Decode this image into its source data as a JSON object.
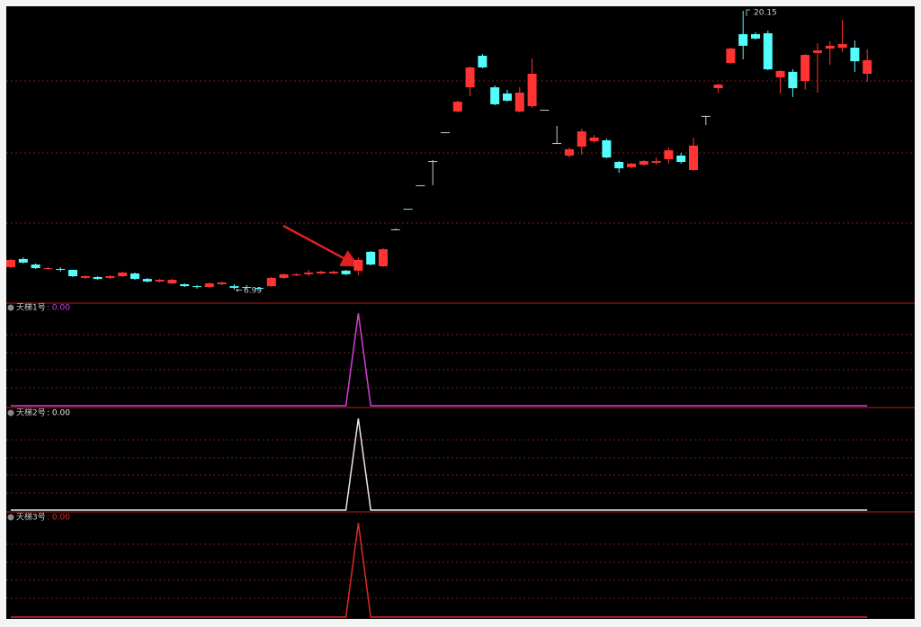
{
  "chart_data": [
    {
      "type": "candlestick",
      "open": [
        8.06,
        8.44,
        8.18,
        7.97,
        7.97,
        7.93,
        7.55,
        7.59,
        7.55,
        7.63,
        7.76,
        7.5,
        7.38,
        7.29,
        7.25,
        7.16,
        7.12,
        7.25,
        7.16,
        7.12,
        7.08,
        7.16,
        7.55,
        7.67,
        7.72,
        7.76,
        7.76,
        7.89,
        7.89,
        8.78,
        8.1,
        9.84,
        10.81,
        11.92,
        13.06,
        14.42,
        15.4,
        16.54,
        18.03,
        16.54,
        16.25,
        15.4,
        15.65,
        15.48,
        13.91,
        13.32,
        13.74,
        14.0,
        14.04,
        13.02,
        12.77,
        12.89,
        12.98,
        13.15,
        13.32,
        12.64,
        15.19,
        16.5,
        17.69,
        19.05,
        19.05,
        19.09,
        17.01,
        17.27,
        16.84,
        18.16,
        18.37,
        18.41,
        18.41,
        17.18
      ],
      "high": [
        8.44,
        8.52,
        8.23,
        8.06,
        8.06,
        7.93,
        7.67,
        7.63,
        7.67,
        7.84,
        7.8,
        7.55,
        7.5,
        7.5,
        7.29,
        7.21,
        7.33,
        7.38,
        7.25,
        7.21,
        7.12,
        7.59,
        7.76,
        7.76,
        7.93,
        7.89,
        7.89,
        7.93,
        8.52,
        8.82,
        8.95,
        9.88,
        10.81,
        11.92,
        13.11,
        14.42,
        15.91,
        17.52,
        18.11,
        16.63,
        16.42,
        16.54,
        17.9,
        15.48,
        14.72,
        13.7,
        14.59,
        14.29,
        14.12,
        13.06,
        12.98,
        13.11,
        13.23,
        13.7,
        13.45,
        14.17,
        15.19,
        16.71,
        18.41,
        20.15,
        19.13,
        19.22,
        17.35,
        17.39,
        18.11,
        18.62,
        18.71,
        19.73,
        18.75,
        18.33
      ],
      "low": [
        8.01,
        8.23,
        7.97,
        7.93,
        7.84,
        7.59,
        7.5,
        7.46,
        7.5,
        7.59,
        7.46,
        7.33,
        7.33,
        7.25,
        7.12,
        7.04,
        7.08,
        7.21,
        6.99,
        7.04,
        7.01,
        7.12,
        7.5,
        7.63,
        7.63,
        7.72,
        7.72,
        7.67,
        7.67,
        8.14,
        8.06,
        9.8,
        10.81,
        11.92,
        11.92,
        14.42,
        15.36,
        16.12,
        17.44,
        15.69,
        15.86,
        15.36,
        15.57,
        15.48,
        13.87,
        13.23,
        13.36,
        13.91,
        13.19,
        12.51,
        12.72,
        12.85,
        12.89,
        12.94,
        12.94,
        12.6,
        14.76,
        16.29,
        17.65,
        17.86,
        18.79,
        17.35,
        16.25,
        16.08,
        16.42,
        16.29,
        17.6,
        18.2,
        17.27,
        16.8
      ],
      "close": [
        8.4,
        8.27,
        8.01,
        8.01,
        7.93,
        7.63,
        7.63,
        7.5,
        7.63,
        7.8,
        7.5,
        7.38,
        7.46,
        7.46,
        7.16,
        7.12,
        7.29,
        7.33,
        7.08,
        7.08,
        7.04,
        7.55,
        7.72,
        7.72,
        7.8,
        7.84,
        7.84,
        7.72,
        8.4,
        8.18,
        8.9,
        9.84,
        10.81,
        11.92,
        13.06,
        14.42,
        15.86,
        17.48,
        17.48,
        15.74,
        15.91,
        16.29,
        17.18,
        15.48,
        13.91,
        13.62,
        14.46,
        14.17,
        13.23,
        12.72,
        12.94,
        13.06,
        13.06,
        13.57,
        13.02,
        13.79,
        15.19,
        16.67,
        18.37,
        18.5,
        18.84,
        17.39,
        17.31,
        16.5,
        18.07,
        18.28,
        18.5,
        18.58,
        17.77,
        17.82
      ],
      "ylim": [
        6.4,
        20.66
      ],
      "up_color": "#ff3333",
      "down_color": "#54fcfc",
      "flat_color": "#c8c8c8"
    },
    {
      "type": "line",
      "ylim": [
        0,
        1.1
      ],
      "series": [
        {
          "name": "天梯1号",
          "value_label": ": 0.00",
          "color": "#d43fd4",
          "values": [
            0,
            0,
            0,
            0,
            0,
            0,
            0,
            0,
            0,
            0,
            0,
            0,
            0,
            0,
            0,
            0,
            0,
            0,
            0,
            0,
            0,
            0,
            0,
            0,
            0,
            0,
            0,
            0,
            1,
            0,
            0,
            0,
            0,
            0,
            0,
            0,
            0,
            0,
            0,
            0,
            0,
            0,
            0,
            0,
            0,
            0,
            0,
            0,
            0,
            0,
            0,
            0,
            0,
            0,
            0,
            0,
            0,
            0,
            0,
            0,
            0,
            0,
            0,
            0,
            0,
            0,
            0,
            0,
            0,
            0
          ]
        }
      ]
    },
    {
      "type": "line",
      "ylim": [
        0,
        1.1
      ],
      "series": [
        {
          "name": "天梯2号",
          "value_label": ": 0.00",
          "color": "#e8e8e8",
          "values": [
            0,
            0,
            0,
            0,
            0,
            0,
            0,
            0,
            0,
            0,
            0,
            0,
            0,
            0,
            0,
            0,
            0,
            0,
            0,
            0,
            0,
            0,
            0,
            0,
            0,
            0,
            0,
            0,
            1,
            0,
            0,
            0,
            0,
            0,
            0,
            0,
            0,
            0,
            0,
            0,
            0,
            0,
            0,
            0,
            0,
            0,
            0,
            0,
            0,
            0,
            0,
            0,
            0,
            0,
            0,
            0,
            0,
            0,
            0,
            0,
            0,
            0,
            0,
            0,
            0,
            0,
            0,
            0,
            0,
            0
          ]
        }
      ]
    },
    {
      "type": "line",
      "ylim": [
        0,
        1.1
      ],
      "series": [
        {
          "name": "天梯3号",
          "value_label": ": 0.00",
          "color": "#e02828",
          "values": [
            0,
            0,
            0,
            0,
            0,
            0,
            0,
            0,
            0,
            0,
            0,
            0,
            0,
            0,
            0,
            0,
            0,
            0,
            0,
            0,
            0,
            0,
            0,
            0,
            0,
            0,
            0,
            0,
            1,
            0,
            0,
            0,
            0,
            0,
            0,
            0,
            0,
            0,
            0,
            0,
            0,
            0,
            0,
            0,
            0,
            0,
            0,
            0,
            0,
            0,
            0,
            0,
            0,
            0,
            0,
            0,
            0,
            0,
            0,
            0,
            0,
            0,
            0,
            0,
            0,
            0,
            0,
            0,
            0,
            0
          ]
        }
      ]
    }
  ]
}
